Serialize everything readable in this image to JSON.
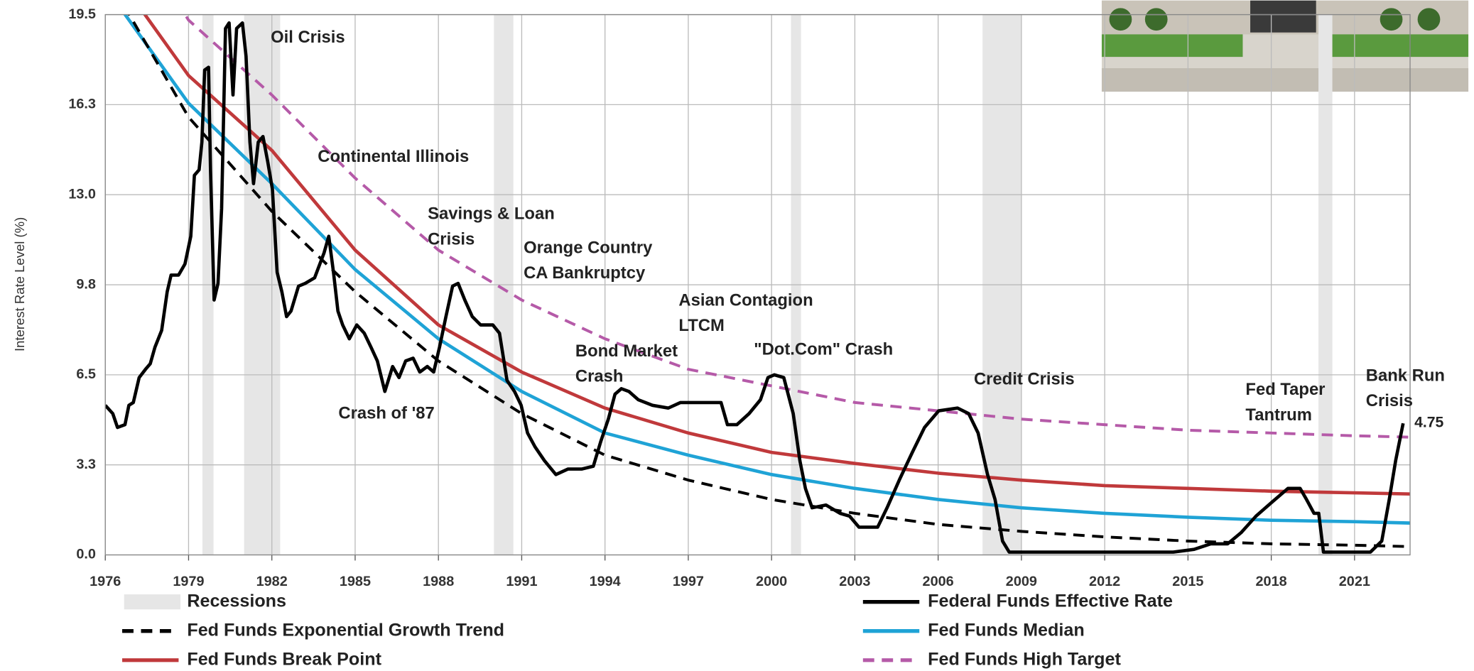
{
  "chart_data": {
    "type": "line",
    "y_label": "Interest Rate Level (%)",
    "xlim": [
      1976,
      2023
    ],
    "ylim": [
      0,
      19.5
    ],
    "xticks": [
      1976,
      1979,
      1982,
      1985,
      1988,
      1991,
      1994,
      1997,
      2000,
      2003,
      2006,
      2009,
      2012,
      2015,
      2018,
      2021
    ],
    "yticks": [
      {
        "value": 0,
        "label": "0.0"
      },
      {
        "value": 3.25,
        "label": "3.3"
      },
      6.5,
      {
        "value": 9.75,
        "label": "9.8"
      },
      {
        "value": 13,
        "label": "13.0"
      },
      {
        "value": 16.25,
        "label": "16.3"
      },
      19.5
    ],
    "grid": true,
    "recessions": {
      "name": "Recessions",
      "color": "#e6e6e6",
      "spans": [
        [
          1979.5,
          1979.9
        ],
        [
          1981.0,
          1982.3
        ],
        [
          1990.0,
          1990.7
        ],
        [
          2000.7,
          2001.06
        ],
        [
          2007.6,
          2009.0
        ],
        [
          2019.7,
          2020.2
        ]
      ]
    },
    "series": [
      {
        "name": "Federal Funds Effective Rate",
        "color": "#000000",
        "dashed": false,
        "x": [
          1976.0,
          1976.27,
          1976.44,
          1976.71,
          1976.85,
          1977.01,
          1977.22,
          1977.45,
          1977.62,
          1977.79,
          1978.03,
          1978.23,
          1978.37,
          1978.64,
          1978.87,
          1979.08,
          1979.21,
          1979.38,
          1979.48,
          1979.58,
          1979.72,
          1979.79,
          1979.92,
          1980.06,
          1980.19,
          1980.33,
          1980.46,
          1980.6,
          1980.73,
          1980.94,
          1981.07,
          1981.21,
          1981.34,
          1981.51,
          1981.68,
          1981.85,
          1982.02,
          1982.19,
          1982.36,
          1982.53,
          1982.69,
          1982.96,
          1983.2,
          1983.54,
          1983.88,
          1984.05,
          1984.22,
          1984.38,
          1984.55,
          1984.79,
          1985.06,
          1985.33,
          1985.57,
          1985.8,
          1986.07,
          1986.35,
          1986.58,
          1986.82,
          1987.09,
          1987.33,
          1987.6,
          1987.83,
          1988.04,
          1988.27,
          1988.51,
          1988.71,
          1988.95,
          1989.22,
          1989.52,
          1989.96,
          1990.2,
          1990.47,
          1990.74,
          1990.98,
          1991.21,
          1991.48,
          1991.82,
          1992.23,
          1992.67,
          1993.17,
          1993.58,
          1993.85,
          1994.12,
          1994.36,
          1994.59,
          1994.86,
          1995.2,
          1995.71,
          1996.28,
          1996.72,
          1997.23,
          1998.18,
          1998.41,
          1998.75,
          1999.19,
          1999.6,
          1999.87,
          2000.1,
          2000.44,
          2000.78,
          2001.02,
          2001.22,
          2001.46,
          2001.96,
          2002.47,
          2002.81,
          2003.15,
          2003.82,
          2004.16,
          2004.6,
          2005.07,
          2005.51,
          2006.02,
          2006.7,
          2007.1,
          2007.44,
          2007.78,
          2008.05,
          2008.32,
          2008.56,
          2010.42,
          2012.78,
          2014.47,
          2015.22,
          2015.82,
          2016.43,
          2016.91,
          2017.45,
          2018.02,
          2018.6,
          2019.04,
          2019.27,
          2019.54,
          2019.71,
          2019.88,
          2021.57,
          2021.98,
          2022.25,
          2022.48,
          2022.75
        ],
        "values": [
          5.4,
          5.1,
          4.6,
          4.7,
          5.4,
          5.5,
          6.4,
          6.7,
          6.9,
          7.5,
          8.1,
          9.5,
          10.1,
          10.1,
          10.5,
          11.5,
          13.7,
          13.9,
          14.9,
          17.5,
          17.6,
          13.9,
          9.2,
          9.8,
          12.5,
          19.0,
          19.2,
          16.6,
          19.0,
          19.2,
          18.0,
          14.9,
          13.4,
          14.9,
          15.1,
          14.2,
          13.2,
          10.2,
          9.5,
          8.6,
          8.8,
          9.7,
          9.8,
          10.0,
          10.9,
          11.5,
          10.2,
          8.8,
          8.3,
          7.8,
          8.3,
          8.0,
          7.5,
          7.0,
          5.9,
          6.8,
          6.4,
          7.0,
          7.1,
          6.6,
          6.8,
          6.6,
          7.5,
          8.6,
          9.7,
          9.8,
          9.2,
          8.6,
          8.3,
          8.3,
          8.0,
          6.3,
          5.9,
          5.4,
          4.4,
          3.9,
          3.4,
          2.9,
          3.1,
          3.1,
          3.2,
          4.1,
          4.9,
          5.8,
          6.0,
          5.9,
          5.6,
          5.4,
          5.3,
          5.5,
          5.5,
          5.5,
          4.7,
          4.7,
          5.1,
          5.6,
          6.4,
          6.5,
          6.4,
          5.1,
          3.4,
          2.4,
          1.7,
          1.8,
          1.5,
          1.4,
          1.0,
          1.0,
          1.7,
          2.7,
          3.7,
          4.6,
          5.2,
          5.3,
          5.1,
          4.4,
          2.9,
          2.0,
          0.5,
          0.1,
          0.1,
          0.1,
          0.1,
          0.2,
          0.4,
          0.4,
          0.8,
          1.4,
          1.9,
          2.4,
          2.4,
          2.0,
          1.5,
          1.5,
          0.1,
          0.1,
          0.5,
          2.0,
          3.4,
          4.75
        ]
      },
      {
        "name": "Fed Funds Exponential Growth Trend",
        "color": "#000000",
        "dashed": true,
        "x": [
          1976,
          1979,
          1982,
          1985,
          1988,
          1991,
          1994,
          1997,
          2000,
          2003,
          2006,
          2009,
          2012,
          2015,
          2018,
          2021,
          2023
        ],
        "values": [
          21,
          15.8,
          12.4,
          9.5,
          7.0,
          5.1,
          3.6,
          2.7,
          2.0,
          1.5,
          1.1,
          0.85,
          0.65,
          0.5,
          0.4,
          0.35,
          0.3
        ]
      },
      {
        "name": "Fed Funds Median",
        "color": "#1fa3d6",
        "dashed": false,
        "x": [
          1976,
          1979,
          1982,
          1985,
          1988,
          1991,
          1994,
          1997,
          2000,
          2003,
          2006,
          2009,
          2012,
          2015,
          2018,
          2021,
          2023
        ],
        "values": [
          20.5,
          16.3,
          13.4,
          10.3,
          7.8,
          5.9,
          4.4,
          3.6,
          2.9,
          2.4,
          2.0,
          1.7,
          1.5,
          1.36,
          1.25,
          1.2,
          1.15
        ]
      },
      {
        "name": "Fed Funds Break Point",
        "color": "#c0393b",
        "dashed": false,
        "x": [
          1976,
          1979,
          1982,
          1985,
          1988,
          1991,
          1994,
          1997,
          2000,
          2003,
          2006,
          2009,
          2012,
          2015,
          2018,
          2021,
          2023
        ],
        "values": [
          21.5,
          17.3,
          14.6,
          11.0,
          8.3,
          6.6,
          5.3,
          4.4,
          3.7,
          3.3,
          2.95,
          2.7,
          2.5,
          2.4,
          2.3,
          2.24,
          2.2
        ]
      },
      {
        "name": "Fed Funds High Target",
        "color": "#b55aa8",
        "dashed": true,
        "x": [
          1976,
          1979,
          1982,
          1985,
          1988,
          1991,
          1994,
          1997,
          2000,
          2003,
          2006,
          2009,
          2012,
          2015,
          2018,
          2021,
          2023
        ],
        "values": [
          24,
          19.3,
          16.6,
          13.6,
          11.0,
          9.2,
          7.8,
          6.7,
          6.1,
          5.5,
          5.2,
          4.9,
          4.7,
          4.5,
          4.4,
          4.3,
          4.25
        ]
      }
    ],
    "annotations": [
      [
        "Oil Crisis"
      ],
      [
        "Continental Illinois"
      ],
      [
        "Savings & Loan",
        "Crisis"
      ],
      [
        "Orange Country",
        "CA Bankruptcy"
      ],
      [
        "Asian Contagion",
        "LTCM"
      ],
      [
        "Bond Market",
        "Crash"
      ],
      [
        "\"Dot.Com\" Crash"
      ],
      [
        "Crash of '87"
      ],
      [
        "Credit Crisis"
      ],
      [
        "Fed Taper",
        "Tantrum"
      ],
      [
        "Bank Run",
        "Crisis"
      ]
    ]
  }
}
